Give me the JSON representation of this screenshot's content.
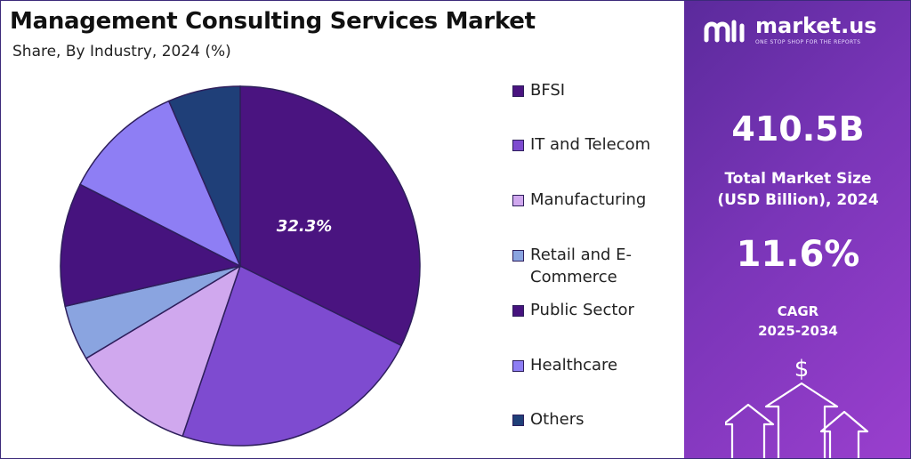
{
  "header": {
    "title": "Management Consulting Services Market",
    "subtitle": "Share, By Industry, 2024 (%)"
  },
  "chart_data": {
    "type": "pie",
    "title": "Management Consulting Services Market",
    "subtitle": "Share, By Industry, 2024 (%)",
    "categories": [
      "BFSI",
      "IT and Telecom",
      "Manufacturing",
      "Retail and E-Commerce",
      "Public Sector",
      "Healthcare",
      "Others"
    ],
    "values": [
      32.3,
      22.9,
      11.2,
      5.0,
      11.1,
      11.0,
      6.5
    ],
    "colors": [
      "#4a1480",
      "#7e4bd0",
      "#d0a8ee",
      "#8aa4e0",
      "#46137e",
      "#8e7ef4",
      "#1f3f78"
    ],
    "data_labels": [
      "32.3%",
      "",
      "",
      "",
      "",
      "",
      ""
    ],
    "legend_placement": "right",
    "legend": [
      "BFSI",
      "IT and Telecom",
      "Manufacturing",
      "Retail and E-\nCommerce",
      "Public Sector",
      "Healthcare",
      "Others"
    ]
  },
  "sidebar": {
    "brand_name": "market.us",
    "brand_tagline": "ONE STOP SHOP FOR THE REPORTS",
    "market_size_value": "410.5B",
    "market_size_label_line1": "Total Market Size",
    "market_size_label_line2": "(USD Billion), 2024",
    "cagr_value": "11.6%",
    "cagr_label_line1": "CAGR",
    "cagr_label_line2": "2025-2034",
    "dollar_symbol": "$",
    "icons": [
      "brand-logo-icon",
      "growth-arrows-icon"
    ]
  }
}
